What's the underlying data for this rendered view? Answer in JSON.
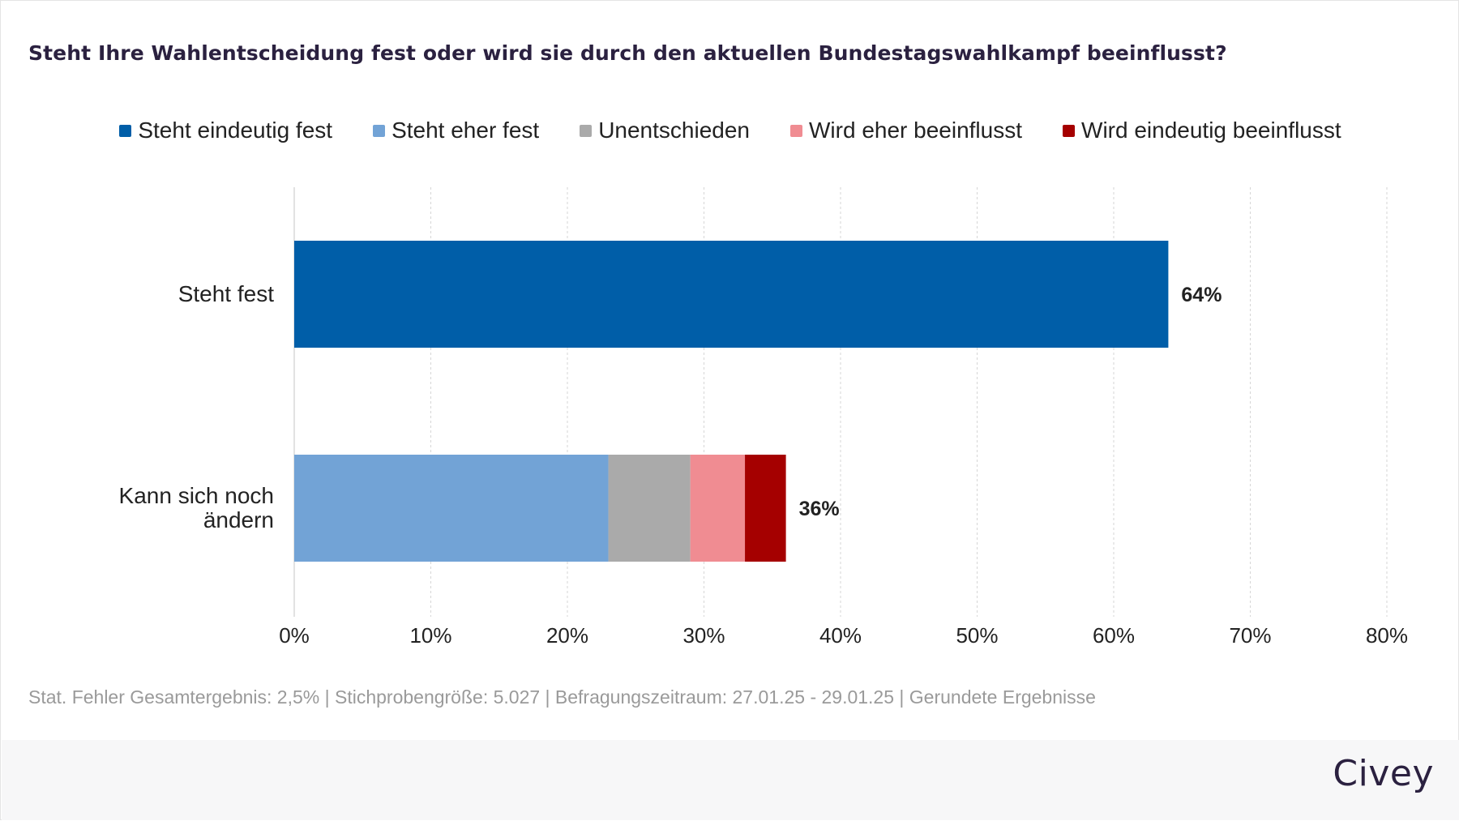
{
  "chart_data": {
    "type": "bar",
    "orientation": "horizontal",
    "stacked": true,
    "title": "Steht Ihre Wahlentscheidung fest oder wird sie durch den aktuellen Bundestagswahlkampf beeinflusst?",
    "categories": [
      "Steht fest",
      "Kann sich noch ändern"
    ],
    "category_lines": [
      [
        "Steht fest"
      ],
      [
        "Kann sich noch",
        "ändern"
      ]
    ],
    "series": [
      {
        "name": "Steht eindeutig fest",
        "color": "#005ea8",
        "values": [
          64,
          0
        ]
      },
      {
        "name": "Steht eher fest",
        "color": "#72a3d6",
        "values": [
          0,
          23
        ]
      },
      {
        "name": "Unentschieden",
        "color": "#aaaaaa",
        "values": [
          0,
          6
        ]
      },
      {
        "name": "Wird eher beeinflusst",
        "color": "#f08c92",
        "values": [
          0,
          4
        ]
      },
      {
        "name": "Wird eindeutig beeinflusst",
        "color": "#a50000",
        "values": [
          0,
          3
        ]
      }
    ],
    "totals": [
      "64%",
      "36%"
    ],
    "xlim": [
      0,
      80
    ],
    "xticks": [
      "0%",
      "10%",
      "20%",
      "30%",
      "40%",
      "50%",
      "60%",
      "70%",
      "80%"
    ],
    "xlabel": "",
    "ylabel": "",
    "grid": "vertical-dashed",
    "legend_position": "top"
  },
  "footnote": "Stat. Fehler Gesamtergebnis: 2,5% | Stichprobengröße: 5.027 | Befragungszeitraum: 27.01.25 - 29.01.25 | Gerundete Ergebnisse",
  "brand": "Civey",
  "colors": {
    "title": "#2b2140",
    "grid": "#d6d6d6",
    "axis_text": "#222222",
    "footnote": "#9a9a9a",
    "footer_band": "#f7f7f8"
  }
}
